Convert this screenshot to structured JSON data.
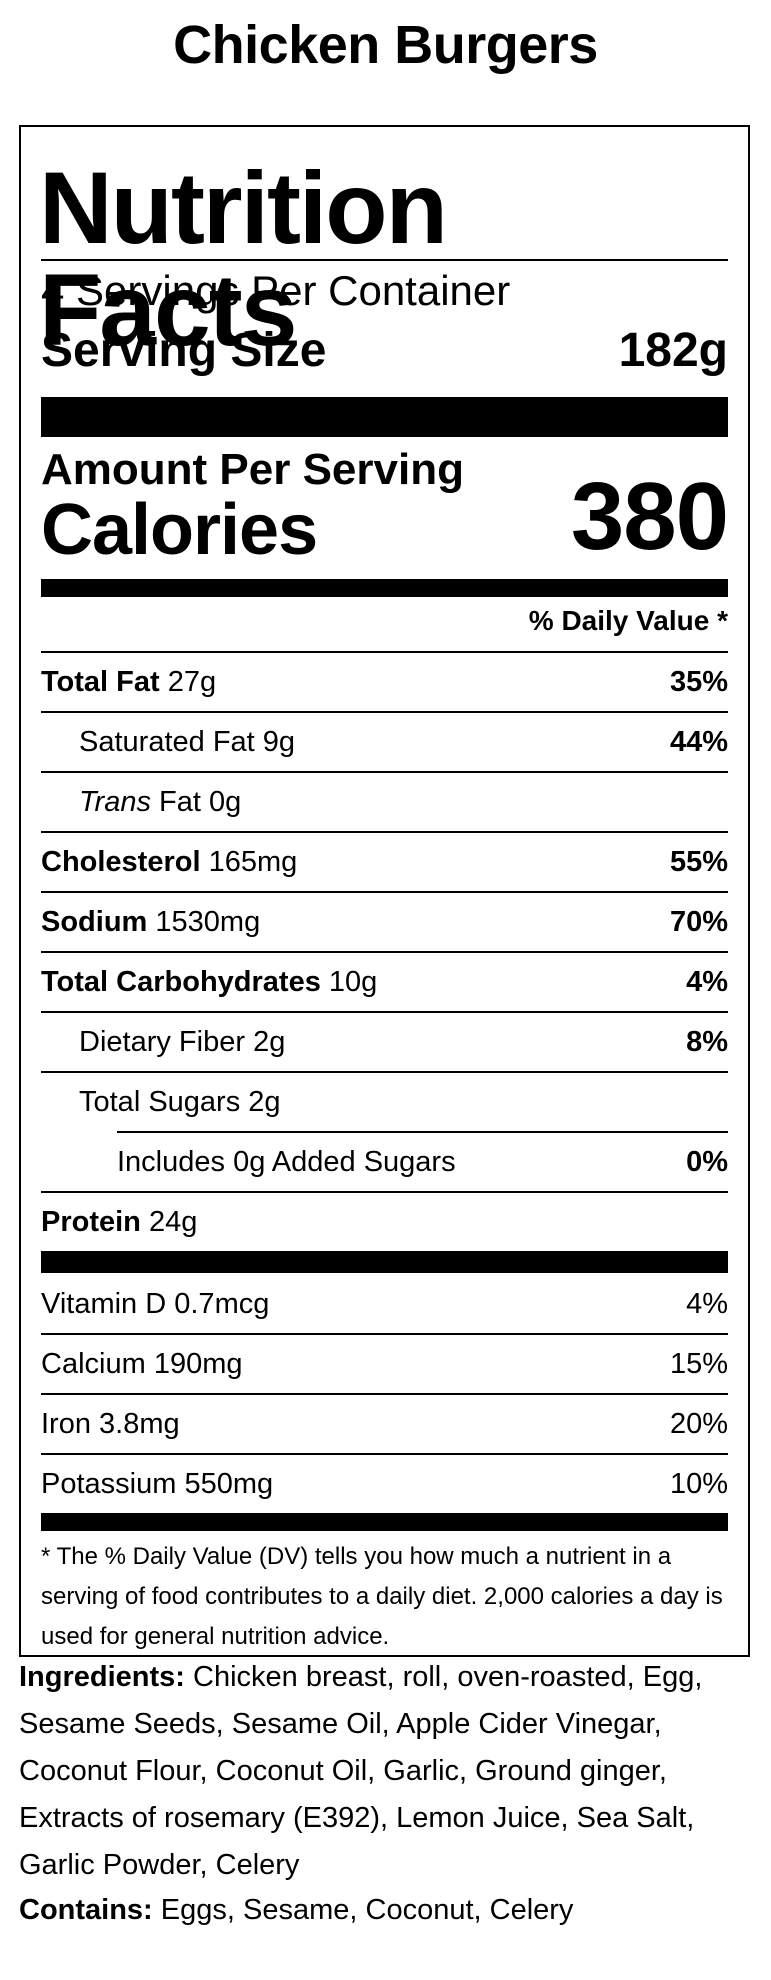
{
  "product_title": "Chicken Burgers",
  "label": {
    "heading": "Nutrition Facts",
    "servings_per_container": "4 Servings Per Container",
    "serving_size_label": "Serving Size",
    "serving_size_value": "182g",
    "amount_per_serving": "Amount Per Serving",
    "calories_label": "Calories",
    "calories_value": "380",
    "daily_value_header": "% Daily Value *",
    "nutrients": [
      {
        "name": "Total Fat",
        "amount": "27g",
        "dv": "35%"
      },
      {
        "name": "Saturated Fat",
        "amount": "9g",
        "dv": "44%"
      },
      {
        "name_italic": "Trans",
        "name": "Fat",
        "amount": "0g",
        "dv": ""
      },
      {
        "name": "Cholesterol",
        "amount": "165mg",
        "dv": "55%"
      },
      {
        "name": "Sodium",
        "amount": "1530mg",
        "dv": "70%"
      },
      {
        "name": "Total Carbohydrates",
        "amount": "10g",
        "dv": "4%"
      },
      {
        "name": "Dietary Fiber",
        "amount": "2g",
        "dv": "8%"
      },
      {
        "name": "Total Sugars",
        "amount": "2g",
        "dv": ""
      },
      {
        "name": "Includes 0g Added Sugars",
        "amount": "",
        "dv": "0%"
      },
      {
        "name": "Protein",
        "amount": "24g",
        "dv": ""
      }
    ],
    "vitamins": [
      {
        "name": "Vitamin D",
        "amount": "0.7mcg",
        "dv": "4%"
      },
      {
        "name": "Calcium",
        "amount": "190mg",
        "dv": "15%"
      },
      {
        "name": "Iron",
        "amount": "3.8mg",
        "dv": "20%"
      },
      {
        "name": "Potassium",
        "amount": "550mg",
        "dv": "10%"
      }
    ],
    "footnote": "* The % Daily Value (DV) tells you how much a nutrient in a serving of food contributes to a daily diet. 2,000 calories a day is used for general nutrition advice."
  },
  "ingredients": {
    "label": "Ingredients:",
    "text": "Chicken breast, roll, oven-roasted, Egg, Sesame Seeds, Sesame Oil, Apple Cider Vinegar, Coconut Flour, Coconut Oil, Garlic, Ground ginger, Extracts of rosemary (E392), Lemon Juice, Sea Salt, Garlic Powder, Celery"
  },
  "contains": {
    "label": "Contains:",
    "text": "Eggs, Sesame, Coconut, Celery"
  }
}
